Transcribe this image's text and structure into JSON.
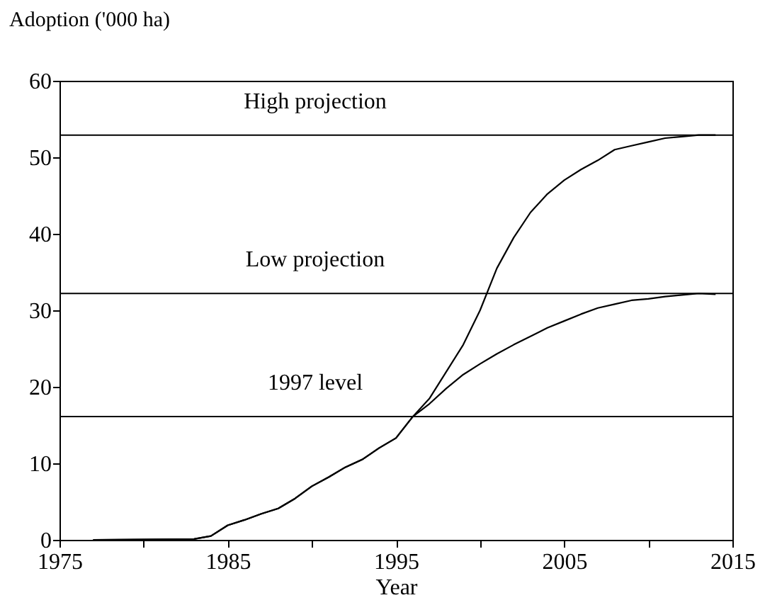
{
  "chart_data": {
    "type": "line",
    "ylabel": "Adoption ('000 ha)",
    "xlabel": "Year",
    "series": [
      {
        "color": "#000000",
        "x": [
          1977,
          1983,
          1984,
          1985,
          1986,
          1987,
          1988,
          1989,
          1990,
          1991,
          1992,
          1993,
          1994,
          1995,
          1996,
          1997,
          1998,
          1999,
          2000,
          2001,
          2002,
          2003,
          2004,
          2005,
          2006,
          2007,
          2008,
          2009,
          2010,
          2011,
          2012,
          2013,
          2014
        ],
        "values": [
          0,
          0.1,
          0.5,
          1.9,
          2.6,
          3.4,
          4.1,
          5.4,
          7.0,
          8.2,
          9.5,
          10.5,
          12.0,
          13.3,
          16.1,
          18.5,
          22.0,
          25.5,
          30.0,
          35.5,
          39.5,
          42.8,
          45.2,
          47.0,
          48.4,
          49.6,
          51.0,
          51.5,
          52.0,
          52.5,
          52.7,
          52.9,
          52.9
        ]
      },
      {
        "color": "#000000",
        "x": [
          1977,
          1983,
          1984,
          1985,
          1986,
          1987,
          1988,
          1989,
          1990,
          1991,
          1992,
          1993,
          1994,
          1995,
          1996,
          1997,
          1998,
          1999,
          2000,
          2001,
          2002,
          2003,
          2004,
          2005,
          2006,
          2007,
          2008,
          2009,
          2010,
          2011,
          2012,
          2013,
          2014
        ],
        "values": [
          0,
          0.1,
          0.5,
          1.9,
          2.6,
          3.4,
          4.1,
          5.4,
          7.0,
          8.2,
          9.5,
          10.5,
          12.0,
          13.3,
          16.1,
          17.8,
          19.8,
          21.6,
          23.0,
          24.3,
          25.5,
          26.6,
          27.7,
          28.6,
          29.5,
          30.3,
          30.8,
          31.3,
          31.5,
          31.8,
          32.0,
          32.2,
          32.1
        ]
      }
    ],
    "ref_lines": [
      {
        "axis": "y",
        "value": 52.9,
        "label": "High projection",
        "color": "#000000"
      },
      {
        "axis": "y",
        "value": 32.2,
        "label": "Low projection",
        "color": "#000000"
      },
      {
        "axis": "y",
        "value": 16.1,
        "label": "1997 level",
        "color": "#000000"
      }
    ],
    "xlim": [
      1975,
      2015
    ],
    "xticks": [
      1975,
      {
        "value": 1980,
        "label": null
      },
      1985,
      {
        "value": 1990,
        "label": null
      },
      1995,
      {
        "value": 2000,
        "label": null
      },
      2005,
      {
        "value": 2010,
        "label": null
      },
      2015
    ],
    "ylim": [
      0,
      60
    ],
    "yticks": [
      0,
      10,
      20,
      30,
      40,
      50,
      60
    ],
    "grid": false,
    "marker": "none",
    "line_style": "solid"
  }
}
